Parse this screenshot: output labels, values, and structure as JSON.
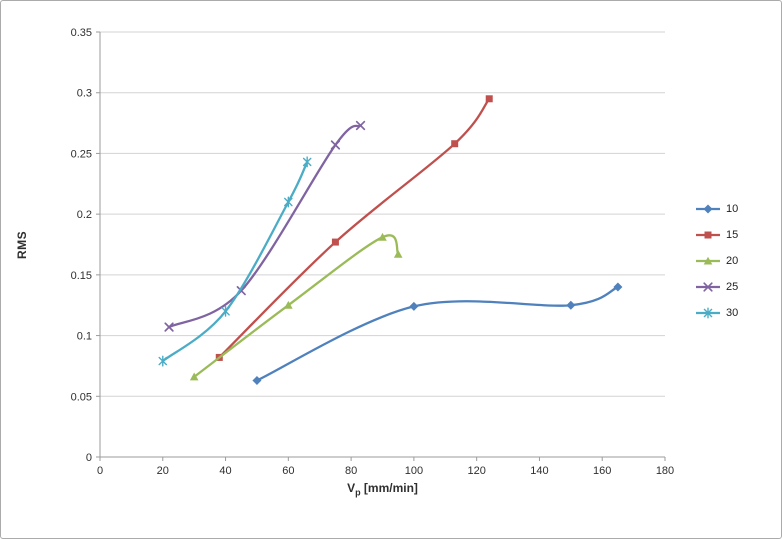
{
  "chart_data": {
    "type": "line",
    "title": "",
    "smooth_lines": true,
    "legend_position": "right",
    "grid": "horizontal",
    "x_axis": {
      "label": "Vp [mm/min]",
      "label_main": "V",
      "label_sub": "p",
      "label_rest": " [mm/min]",
      "min": 0,
      "max": 180,
      "tick_values": [
        0,
        20,
        40,
        60,
        80,
        100,
        120,
        140,
        160,
        180
      ],
      "tick_labels": [
        "0",
        "20",
        "40",
        "60",
        "80",
        "100",
        "120",
        "140",
        "160",
        "180"
      ]
    },
    "y_axis": {
      "label": "RMS",
      "min": 0,
      "max": 0.35,
      "tick_values": [
        0,
        0.05,
        0.1,
        0.15,
        0.2,
        0.25,
        0.3,
        0.35
      ],
      "tick_labels": [
        "0",
        "0.05",
        "0.1",
        "0.15",
        "0.2",
        "0.25",
        "0.3",
        "0.35"
      ]
    },
    "series": [
      {
        "name": "10",
        "color": "#4F81BD",
        "marker": "diamond",
        "points": [
          [
            50,
            0.063
          ],
          [
            100,
            0.124
          ],
          [
            150,
            0.125
          ],
          [
            165,
            0.14
          ]
        ]
      },
      {
        "name": "15",
        "color": "#C0504D",
        "marker": "square",
        "points": [
          [
            38,
            0.082
          ],
          [
            75,
            0.177
          ],
          [
            113,
            0.258
          ],
          [
            124,
            0.295
          ]
        ]
      },
      {
        "name": "20",
        "color": "#9BBB59",
        "marker": "triangle",
        "points": [
          [
            30,
            0.066
          ],
          [
            60,
            0.125
          ],
          [
            90,
            0.181
          ],
          [
            95,
            0.167
          ]
        ]
      },
      {
        "name": "25",
        "color": "#8064A2",
        "marker": "x",
        "points": [
          [
            22,
            0.107
          ],
          [
            45,
            0.137
          ],
          [
            75,
            0.257
          ],
          [
            83,
            0.273
          ]
        ]
      },
      {
        "name": "30",
        "color": "#4BACC6",
        "marker": "asterisk",
        "points": [
          [
            20,
            0.079
          ],
          [
            40,
            0.12
          ],
          [
            60,
            0.21
          ],
          [
            66,
            0.243
          ]
        ]
      }
    ]
  },
  "colors": {
    "grid": "#d3d3d3",
    "axis": "#9b9b9b",
    "tick_text": "#2f2f2f",
    "frame_border": "#ababab"
  }
}
